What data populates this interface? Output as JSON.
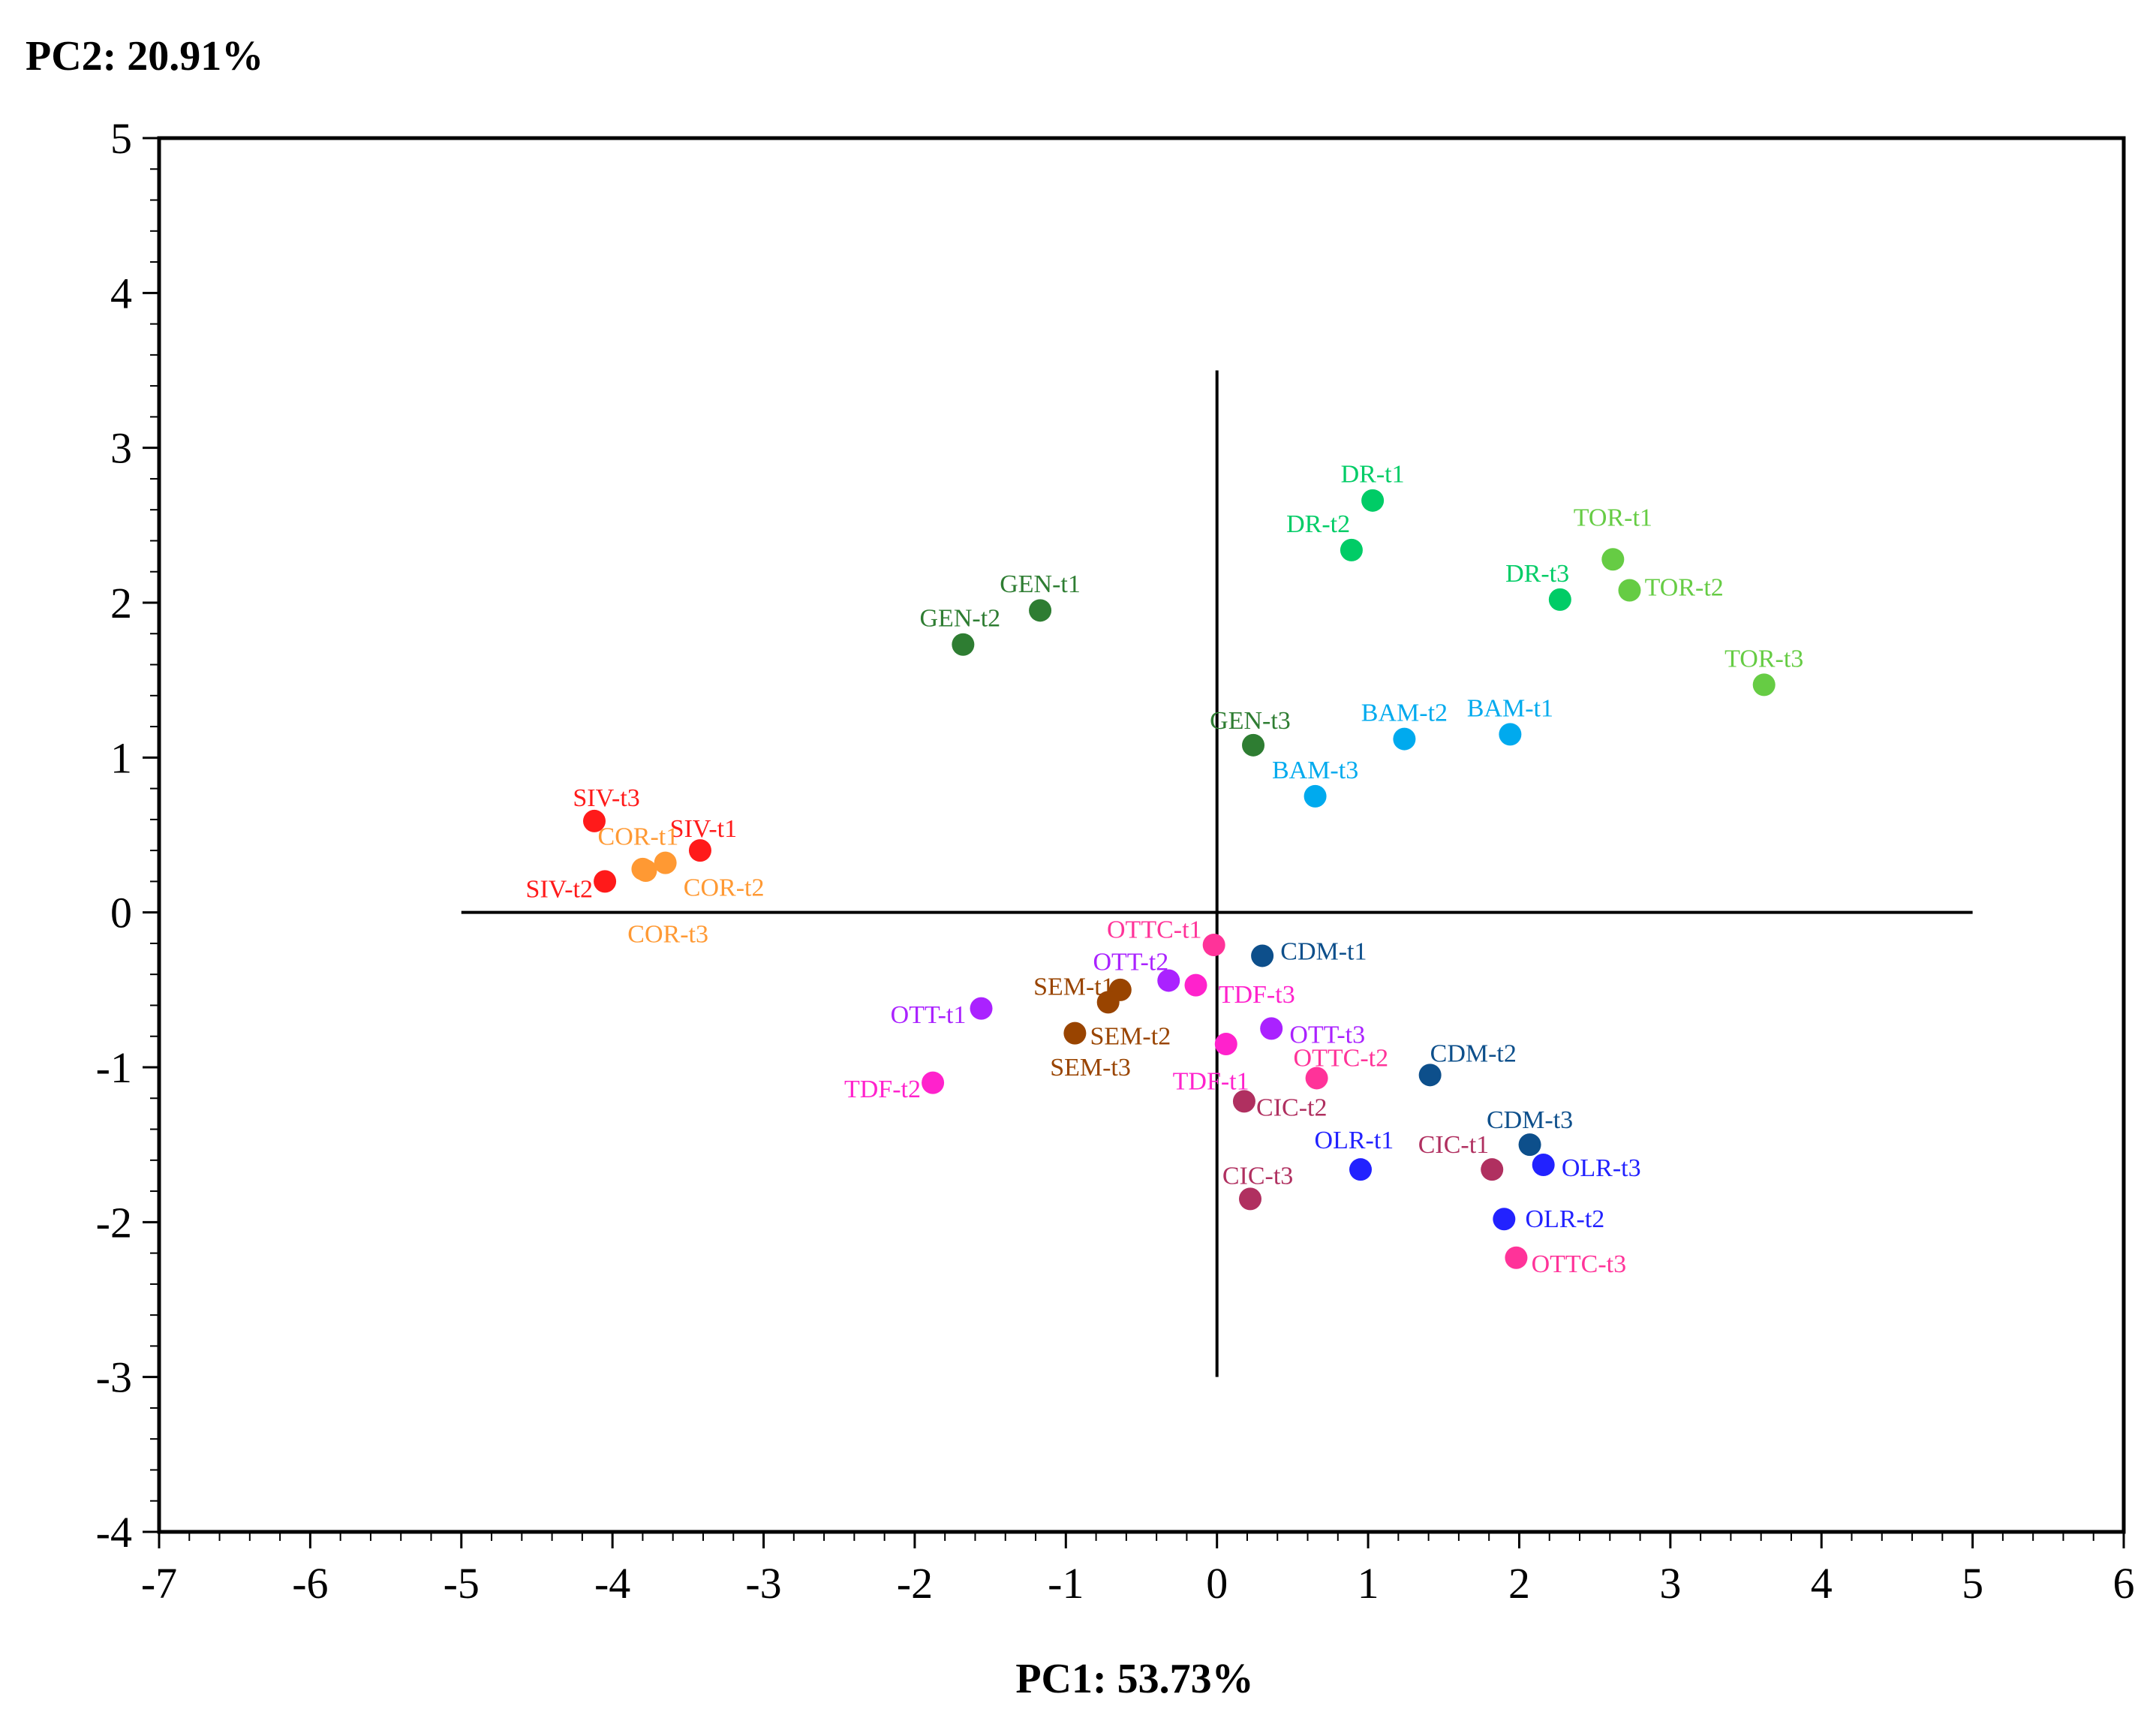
{
  "chart_data": {
    "type": "scatter",
    "title": "",
    "xlabel": "PC1: 53.73%",
    "ylabel": "PC2: 20.91%",
    "xlim": [
      -7,
      6
    ],
    "ylim": [
      -4,
      5
    ],
    "xticks": [
      "-7",
      "-6",
      "-5",
      "-4",
      "-3",
      "-2",
      "-1",
      "0",
      "1",
      "2",
      "3",
      "4",
      "5",
      "6"
    ],
    "yticks": [
      "5",
      "4",
      "3",
      "2",
      "1",
      "0",
      "-1",
      "-2",
      "-3",
      "-4"
    ],
    "crosshair": {
      "x_line": {
        "x": 0,
        "from": -3.0,
        "to": 3.5
      },
      "y_line": {
        "y": 0,
        "from": -5,
        "to": 5
      }
    },
    "grid": false,
    "points": [
      {
        "label": "SIV-t1",
        "x": -3.42,
        "y": 0.4,
        "color": "#ff1a1a",
        "anchor": "start",
        "dx": -0.2,
        "dy": 0.14
      },
      {
        "label": "SIV-t2",
        "x": -4.05,
        "y": 0.2,
        "color": "#ff1a1a",
        "anchor": "end",
        "dx": -0.08,
        "dy": -0.05
      },
      {
        "label": "SIV-t3",
        "x": -4.12,
        "y": 0.59,
        "color": "#ff1a1a",
        "anchor": "middle",
        "dx": 0.08,
        "dy": 0.15
      },
      {
        "label": "COR-t1",
        "x": -3.78,
        "y": 0.27,
        "color": "#ff9933",
        "anchor": "middle",
        "dx": -0.05,
        "dy": 0.22
      },
      {
        "label": "COR-t2",
        "x": -3.65,
        "y": 0.32,
        "color": "#ff9933",
        "anchor": "start",
        "dx": 0.12,
        "dy": -0.16
      },
      {
        "label": "COR-t3",
        "x": -3.8,
        "y": 0.28,
        "color": "#ff9933",
        "anchor": "start",
        "dx": -0.1,
        "dy": -0.42
      },
      {
        "label": "GEN-t1",
        "x": -1.17,
        "y": 1.95,
        "color": "#2e7d32",
        "anchor": "middle",
        "dx": 0.0,
        "dy": 0.17
      },
      {
        "label": "GEN-t2",
        "x": -1.68,
        "y": 1.73,
        "color": "#2e7d32",
        "anchor": "middle",
        "dx": -0.02,
        "dy": 0.17
      },
      {
        "label": "GEN-t3",
        "x": 0.24,
        "y": 1.08,
        "color": "#2e7d32",
        "anchor": "middle",
        "dx": -0.02,
        "dy": 0.16
      },
      {
        "label": "DR-t1",
        "x": 1.03,
        "y": 2.66,
        "color": "#00cc66",
        "anchor": "middle",
        "dx": 0.0,
        "dy": 0.17
      },
      {
        "label": "DR-t2",
        "x": 0.89,
        "y": 2.34,
        "color": "#00cc66",
        "anchor": "middle",
        "dx": -0.22,
        "dy": 0.17
      },
      {
        "label": "DR-t3",
        "x": 2.27,
        "y": 2.02,
        "color": "#00cc66",
        "anchor": "middle",
        "dx": -0.15,
        "dy": 0.17
      },
      {
        "label": "TOR-t1",
        "x": 2.62,
        "y": 2.28,
        "color": "#66cc44",
        "anchor": "middle",
        "dx": 0.0,
        "dy": 0.27
      },
      {
        "label": "TOR-t2",
        "x": 2.73,
        "y": 2.08,
        "color": "#66cc44",
        "anchor": "start",
        "dx": 0.1,
        "dy": 0.02
      },
      {
        "label": "TOR-t3",
        "x": 3.62,
        "y": 1.47,
        "color": "#66cc44",
        "anchor": "middle",
        "dx": 0.0,
        "dy": 0.17
      },
      {
        "label": "BAM-t1",
        "x": 1.94,
        "y": 1.15,
        "color": "#00aaee",
        "anchor": "middle",
        "dx": 0.0,
        "dy": 0.17
      },
      {
        "label": "BAM-t2",
        "x": 1.24,
        "y": 1.12,
        "color": "#00aaee",
        "anchor": "middle",
        "dx": 0.0,
        "dy": 0.17
      },
      {
        "label": "BAM-t3",
        "x": 0.65,
        "y": 0.75,
        "color": "#00aaee",
        "anchor": "middle",
        "dx": 0.0,
        "dy": 0.17
      },
      {
        "label": "CDM-t1",
        "x": 0.3,
        "y": -0.28,
        "color": "#0d4f8b",
        "anchor": "start",
        "dx": 0.12,
        "dy": 0.03
      },
      {
        "label": "CDM-t2",
        "x": 1.41,
        "y": -1.05,
        "color": "#0d4f8b",
        "anchor": "start",
        "dx": 0.0,
        "dy": 0.14
      },
      {
        "label": "CDM-t3",
        "x": 2.07,
        "y": -1.5,
        "color": "#0d4f8b",
        "anchor": "middle",
        "dx": 0.0,
        "dy": 0.16
      },
      {
        "label": "OLR-t1",
        "x": 0.95,
        "y": -1.66,
        "color": "#2222ff",
        "anchor": "end",
        "dx": 0.22,
        "dy": 0.19
      },
      {
        "label": "OLR-t2",
        "x": 1.9,
        "y": -1.98,
        "color": "#2222ff",
        "anchor": "start",
        "dx": 0.14,
        "dy": 0.0
      },
      {
        "label": "OLR-t3",
        "x": 2.16,
        "y": -1.63,
        "color": "#2222ff",
        "anchor": "start",
        "dx": 0.12,
        "dy": -0.02
      },
      {
        "label": "OTTC-t1",
        "x": -0.02,
        "y": -0.21,
        "color": "#ff3399",
        "anchor": "end",
        "dx": -0.08,
        "dy": 0.1
      },
      {
        "label": "OTTC-t2",
        "x": 0.66,
        "y": -1.07,
        "color": "#ff3399",
        "anchor": "middle",
        "dx": 0.16,
        "dy": 0.13
      },
      {
        "label": "OTTC-t3",
        "x": 1.98,
        "y": -2.23,
        "color": "#ff3399",
        "anchor": "start",
        "dx": 0.1,
        "dy": -0.04
      },
      {
        "label": "OTT-t1",
        "x": -1.56,
        "y": -0.62,
        "color": "#aa22ff",
        "anchor": "end",
        "dx": -0.1,
        "dy": -0.04
      },
      {
        "label": "OTT-t2",
        "x": -0.32,
        "y": -0.44,
        "color": "#aa22ff",
        "anchor": "end",
        "dx": 0.0,
        "dy": 0.12
      },
      {
        "label": "OTT-t3",
        "x": 0.36,
        "y": -0.75,
        "color": "#aa22ff",
        "anchor": "start",
        "dx": 0.12,
        "dy": -0.04
      },
      {
        "label": "TDF-t1",
        "x": 0.06,
        "y": -0.85,
        "color": "#ff22cc",
        "anchor": "middle",
        "dx": -0.1,
        "dy": -0.24
      },
      {
        "label": "TDF-t2",
        "x": -1.88,
        "y": -1.1,
        "color": "#ff22cc",
        "anchor": "end",
        "dx": -0.08,
        "dy": -0.04
      },
      {
        "label": "TDF-t3",
        "x": -0.14,
        "y": -0.47,
        "color": "#ff22cc",
        "anchor": "start",
        "dx": 0.15,
        "dy": -0.06
      },
      {
        "label": "SEM-t1",
        "x": -0.64,
        "y": -0.5,
        "color": "#994400",
        "anchor": "end",
        "dx": -0.04,
        "dy": 0.02
      },
      {
        "label": "SEM-t2",
        "x": -0.94,
        "y": -0.78,
        "color": "#994400",
        "anchor": "start",
        "dx": 0.1,
        "dy": -0.02
      },
      {
        "label": "SEM-t3",
        "x": -0.72,
        "y": -0.58,
        "color": "#994400",
        "anchor": "end",
        "dx": 0.15,
        "dy": -0.42
      },
      {
        "label": "CIC-t1",
        "x": 1.82,
        "y": -1.66,
        "color": "#b03060",
        "anchor": "end",
        "dx": -0.02,
        "dy": 0.16
      },
      {
        "label": "CIC-t2",
        "x": 0.18,
        "y": -1.22,
        "color": "#b03060",
        "anchor": "start",
        "dx": 0.08,
        "dy": -0.04
      },
      {
        "label": "CIC-t3",
        "x": 0.22,
        "y": -1.85,
        "color": "#b03060",
        "anchor": "middle",
        "dx": 0.05,
        "dy": 0.15
      }
    ]
  }
}
